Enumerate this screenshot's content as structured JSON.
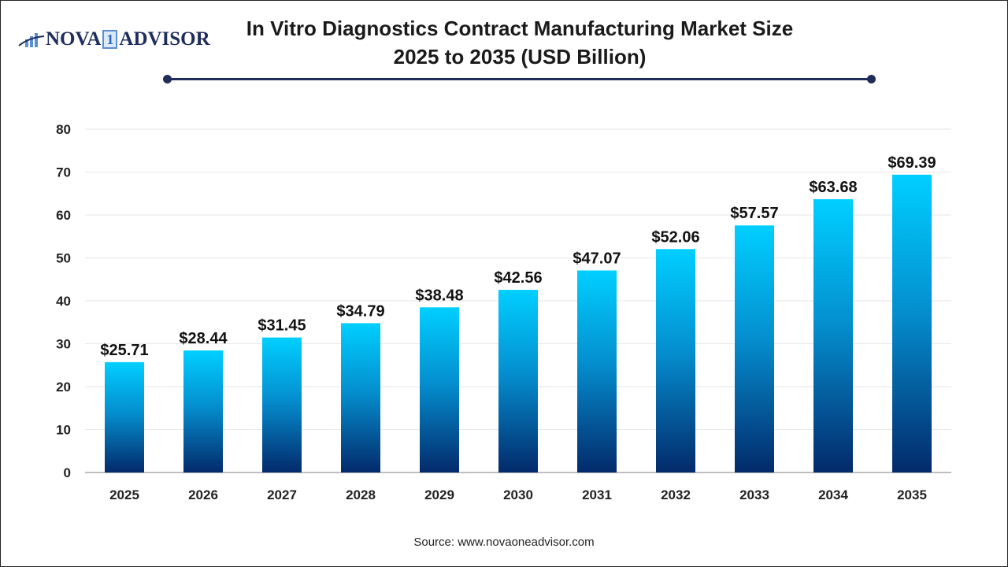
{
  "logo": {
    "text_left": "NOVA",
    "text_mid": "1",
    "text_right": "ADVISOR"
  },
  "title_line1": "In Vitro Diagnostics Contract Manufacturing Market Size",
  "title_line2": "2025 to 2035 (USD Billion)",
  "source": "Source: www.novaoneadvisor.com",
  "colors": {
    "bar_top": "#00cfff",
    "bar_bottom": "#032a6b",
    "accent": "#1f2d5c"
  },
  "chart_data": {
    "type": "bar",
    "title": "In Vitro Diagnostics Contract Manufacturing Market Size 2025 to 2035 (USD Billion)",
    "categories": [
      "2025",
      "2026",
      "2027",
      "2028",
      "2029",
      "2030",
      "2031",
      "2032",
      "2033",
      "2034",
      "2035"
    ],
    "values": [
      25.71,
      28.44,
      31.45,
      34.79,
      38.48,
      42.56,
      47.07,
      52.06,
      57.57,
      63.68,
      69.39
    ],
    "data_labels": [
      "$25.71",
      "$28.44",
      "$31.45",
      "$34.79",
      "$38.48",
      "$42.56",
      "$47.07",
      "$52.06",
      "$57.57",
      "$63.68",
      "$69.39"
    ],
    "yticks": [
      0,
      10,
      20,
      30,
      40,
      50,
      60,
      70,
      80
    ],
    "ylim": [
      0,
      80
    ],
    "grid": true,
    "xlabel": "",
    "ylabel": ""
  }
}
